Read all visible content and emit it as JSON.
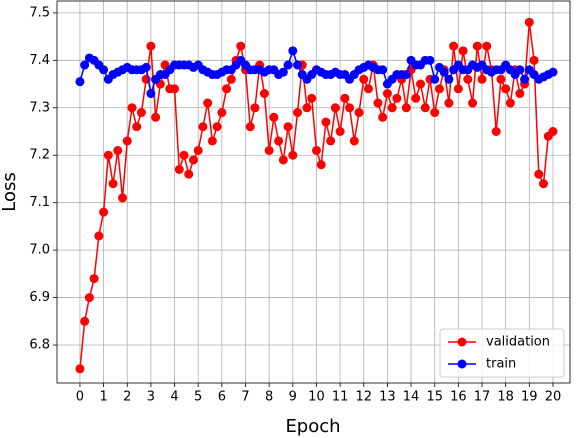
{
  "chart_data": {
    "type": "line",
    "x_label": "Epoch",
    "y_label": "Loss",
    "x": [
      0,
      0.2,
      0.4,
      0.6,
      0.8,
      1,
      1.2,
      1.4,
      1.6,
      1.8,
      2,
      2.2,
      2.4,
      2.6,
      2.8,
      3,
      3.2,
      3.4,
      3.6,
      3.8,
      4,
      4.2,
      4.4,
      4.6,
      4.8,
      5,
      5.2,
      5.4,
      5.6,
      5.8,
      6,
      6.2,
      6.4,
      6.6,
      6.8,
      7,
      7.2,
      7.4,
      7.6,
      7.8,
      8,
      8.2,
      8.4,
      8.6,
      8.8,
      9,
      9.2,
      9.4,
      9.6,
      9.8,
      10,
      10.2,
      10.4,
      10.6,
      10.8,
      11,
      11.2,
      11.4,
      11.6,
      11.8,
      12,
      12.2,
      12.4,
      12.6,
      12.8,
      13,
      13.2,
      13.4,
      13.6,
      13.8,
      14,
      14.2,
      14.4,
      14.6,
      14.8,
      15,
      15.2,
      15.4,
      15.6,
      15.8,
      16,
      16.2,
      16.4,
      16.6,
      16.8,
      17,
      17.2,
      17.4,
      17.6,
      17.8,
      18,
      18.2,
      18.4,
      18.6,
      18.8,
      19,
      19.2,
      19.4,
      19.6,
      19.8,
      20
    ],
    "series": [
      {
        "name": "validation",
        "color": "#ff0000",
        "values": [
          6.75,
          6.85,
          6.9,
          6.94,
          7.03,
          7.08,
          7.2,
          7.14,
          7.21,
          7.11,
          7.23,
          7.3,
          7.26,
          7.29,
          7.36,
          7.43,
          7.28,
          7.35,
          7.39,
          7.34,
          7.34,
          7.17,
          7.2,
          7.16,
          7.19,
          7.21,
          7.26,
          7.31,
          7.23,
          7.26,
          7.29,
          7.34,
          7.36,
          7.4,
          7.43,
          7.38,
          7.26,
          7.3,
          7.39,
          7.33,
          7.21,
          7.28,
          7.23,
          7.19,
          7.26,
          7.2,
          7.29,
          7.39,
          7.3,
          7.32,
          7.21,
          7.18,
          7.27,
          7.23,
          7.3,
          7.25,
          7.32,
          7.3,
          7.23,
          7.29,
          7.36,
          7.34,
          7.39,
          7.31,
          7.28,
          7.33,
          7.3,
          7.32,
          7.36,
          7.3,
          7.38,
          7.32,
          7.35,
          7.3,
          7.36,
          7.29,
          7.34,
          7.38,
          7.31,
          7.43,
          7.34,
          7.42,
          7.36,
          7.31,
          7.43,
          7.36,
          7.43,
          7.38,
          7.25,
          7.36,
          7.34,
          7.31,
          7.38,
          7.33,
          7.35,
          7.48,
          7.4,
          7.16,
          7.14,
          7.24,
          7.25
        ]
      },
      {
        "name": "train",
        "color": "#0000ff",
        "values": [
          7.355,
          7.39,
          7.405,
          7.4,
          7.39,
          7.38,
          7.36,
          7.37,
          7.375,
          7.38,
          7.385,
          7.38,
          7.38,
          7.38,
          7.385,
          7.33,
          7.36,
          7.37,
          7.37,
          7.38,
          7.39,
          7.39,
          7.39,
          7.39,
          7.385,
          7.39,
          7.38,
          7.375,
          7.37,
          7.37,
          7.375,
          7.38,
          7.38,
          7.39,
          7.4,
          7.39,
          7.38,
          7.38,
          7.38,
          7.375,
          7.38,
          7.38,
          7.37,
          7.375,
          7.39,
          7.42,
          7.39,
          7.37,
          7.36,
          7.37,
          7.38,
          7.375,
          7.37,
          7.37,
          7.375,
          7.37,
          7.37,
          7.36,
          7.37,
          7.38,
          7.385,
          7.39,
          7.385,
          7.38,
          7.38,
          7.35,
          7.36,
          7.37,
          7.37,
          7.37,
          7.4,
          7.39,
          7.39,
          7.4,
          7.4,
          7.36,
          7.385,
          7.375,
          7.36,
          7.38,
          7.39,
          7.38,
          7.38,
          7.39,
          7.385,
          7.39,
          7.38,
          7.375,
          7.38,
          7.38,
          7.39,
          7.38,
          7.37,
          7.38,
          7.36,
          7.38,
          7.37,
          7.36,
          7.365,
          7.37,
          7.375
        ]
      }
    ],
    "xlim": [
      -0.97,
      20.72
    ],
    "ylim": [
      6.72,
      7.525
    ],
    "xticks": [
      0,
      1,
      2,
      3,
      4,
      5,
      6,
      7,
      8,
      9,
      10,
      11,
      12,
      13,
      14,
      15,
      16,
      17,
      18,
      19,
      20
    ],
    "yticks": [
      6.8,
      6.9,
      {
        "value": 7,
        "label": "7.0"
      },
      7.1,
      7.2,
      7.3,
      7.4,
      7.5
    ],
    "grid": true,
    "legend": "lower right"
  }
}
